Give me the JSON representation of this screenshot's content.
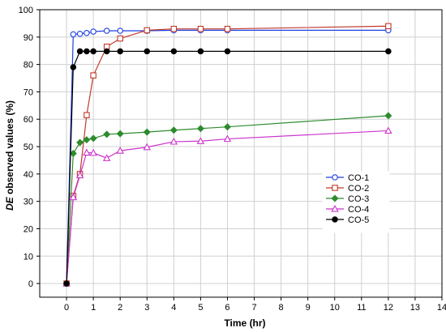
{
  "chart_data": {
    "type": "line",
    "title": "",
    "xlabel": "Time (hr)",
    "ylabel_prefix": "DE",
    "ylabel_suffix": " observed values (%)",
    "xlim": [
      -1,
      14
    ],
    "ylim": [
      -5,
      100
    ],
    "xticks": [
      0,
      1,
      2,
      3,
      4,
      5,
      6,
      7,
      8,
      9,
      10,
      11,
      12,
      13,
      14
    ],
    "yticks": [
      0,
      10,
      20,
      30,
      40,
      50,
      60,
      70,
      80,
      90,
      100
    ],
    "grid": true,
    "legend_position": "center-right",
    "series": [
      {
        "name": "CO-1",
        "color": "#1f3fe0",
        "marker": "circle",
        "x": [
          0,
          0.25,
          0.5,
          0.75,
          1,
          1.5,
          2,
          3,
          4,
          5,
          6,
          12
        ],
        "y": [
          0,
          91,
          91.2,
          91.5,
          92,
          92.3,
          92.3,
          92.3,
          92.5,
          92.5,
          92.5,
          92.5
        ]
      },
      {
        "name": "CO-2",
        "color": "#c0392b",
        "marker": "square",
        "x": [
          0,
          0.25,
          0.5,
          0.75,
          1,
          1.5,
          2,
          3,
          4,
          5,
          6,
          12
        ],
        "y": [
          0,
          32,
          40,
          61.5,
          76,
          86.5,
          89.5,
          92.5,
          93,
          93,
          93,
          94
        ]
      },
      {
        "name": "CO-3",
        "color": "#2e8b2e",
        "marker": "diamond",
        "x": [
          0,
          0.25,
          0.5,
          0.75,
          1,
          1.5,
          2,
          3,
          4,
          5,
          6,
          12
        ],
        "y": [
          0,
          47.5,
          51.5,
          52.5,
          53,
          54.5,
          54.7,
          55.3,
          56,
          56.6,
          57.2,
          61.3
        ]
      },
      {
        "name": "CO-4",
        "color": "#cc33cc",
        "marker": "triangle",
        "x": [
          0,
          0.25,
          0.5,
          0.75,
          1,
          1.5,
          2,
          3,
          4,
          5,
          6,
          12
        ],
        "y": [
          0,
          31.5,
          39.5,
          47.8,
          47.7,
          45.8,
          48.5,
          49.8,
          51.8,
          52,
          52.8,
          55.8
        ]
      },
      {
        "name": "CO-5",
        "color": "#000000",
        "marker": "circle",
        "x": [
          0,
          0.25,
          0.5,
          0.75,
          1,
          1.5,
          2,
          3,
          4,
          5,
          6,
          12
        ],
        "y": [
          0,
          79,
          84.8,
          84.8,
          84.8,
          84.8,
          84.8,
          84.8,
          84.8,
          84.8,
          84.8,
          84.8
        ]
      }
    ]
  }
}
